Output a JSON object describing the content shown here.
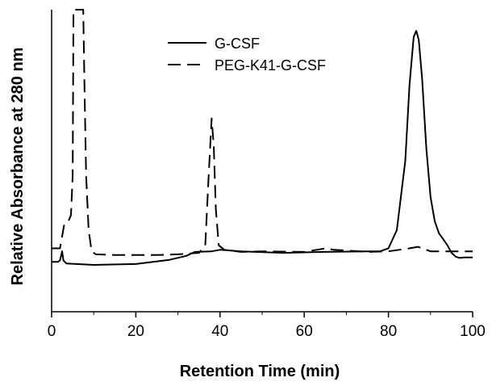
{
  "chart_data": {
    "type": "line",
    "title": "",
    "xlabel": "Retention Time (min)",
    "ylabel": "Relative Absorbance at 280 nm",
    "xlim": [
      0,
      100
    ],
    "ylim": [
      0,
      1
    ],
    "x_ticks": [
      "0",
      "20",
      "40",
      "60",
      "80",
      "100"
    ],
    "y_ticks": [],
    "grid": false,
    "legend_position": "top-center",
    "series": [
      {
        "name": "G-CSF",
        "style": "solid",
        "color": "#000000",
        "points": [
          [
            0,
            0.165
          ],
          [
            1.5,
            0.165
          ],
          [
            2.0,
            0.17
          ],
          [
            2.5,
            0.2
          ],
          [
            2.8,
            0.17
          ],
          [
            3.5,
            0.16
          ],
          [
            10,
            0.155
          ],
          [
            20,
            0.158
          ],
          [
            28,
            0.172
          ],
          [
            32,
            0.185
          ],
          [
            34,
            0.198
          ],
          [
            38,
            0.2
          ],
          [
            40,
            0.205
          ],
          [
            45,
            0.2
          ],
          [
            55,
            0.195
          ],
          [
            65,
            0.198
          ],
          [
            75,
            0.2
          ],
          [
            78,
            0.2
          ],
          [
            80,
            0.21
          ],
          [
            82,
            0.27
          ],
          [
            84,
            0.5
          ],
          [
            85,
            0.75
          ],
          [
            86,
            0.91
          ],
          [
            86.6,
            0.93
          ],
          [
            87.2,
            0.9
          ],
          [
            88,
            0.77
          ],
          [
            89,
            0.54
          ],
          [
            90,
            0.38
          ],
          [
            91,
            0.3
          ],
          [
            92,
            0.26
          ],
          [
            93,
            0.24
          ],
          [
            94,
            0.22
          ],
          [
            95,
            0.195
          ],
          [
            96,
            0.182
          ],
          [
            97,
            0.178
          ],
          [
            98,
            0.18
          ],
          [
            100,
            0.18
          ]
        ]
      },
      {
        "name": "PEG-K41-G-CSF",
        "style": "dashed",
        "color": "#000000",
        "points": [
          [
            0,
            0.21
          ],
          [
            2.0,
            0.21
          ],
          [
            3.0,
            0.29
          ],
          [
            4.0,
            0.3
          ],
          [
            4.6,
            0.32
          ],
          [
            5.0,
            0.45
          ],
          [
            5.2,
            1.0
          ],
          [
            7.5,
            1.0
          ],
          [
            7.8,
            0.75
          ],
          [
            8.2,
            0.45
          ],
          [
            8.8,
            0.27
          ],
          [
            9.5,
            0.2
          ],
          [
            10.5,
            0.19
          ],
          [
            15,
            0.188
          ],
          [
            25,
            0.188
          ],
          [
            30,
            0.19
          ],
          [
            35,
            0.195
          ],
          [
            36.5,
            0.22
          ],
          [
            37.3,
            0.45
          ],
          [
            38,
            0.64
          ],
          [
            38.5,
            0.55
          ],
          [
            39,
            0.34
          ],
          [
            39.7,
            0.22
          ],
          [
            41,
            0.205
          ],
          [
            45,
            0.198
          ],
          [
            50,
            0.2
          ],
          [
            60,
            0.198
          ],
          [
            63,
            0.205
          ],
          [
            65,
            0.21
          ],
          [
            67,
            0.205
          ],
          [
            75,
            0.198
          ],
          [
            80,
            0.2
          ],
          [
            85,
            0.21
          ],
          [
            87,
            0.215
          ],
          [
            88,
            0.21
          ],
          [
            90,
            0.2
          ],
          [
            93,
            0.2
          ],
          [
            97,
            0.2
          ],
          [
            100,
            0.2
          ]
        ]
      }
    ]
  }
}
